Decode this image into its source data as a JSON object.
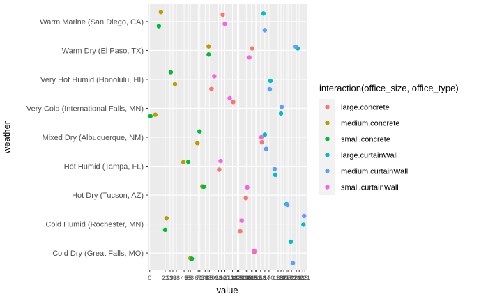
{
  "chart_data": {
    "type": "scatter",
    "xlabel": "value",
    "ylabel": "weather",
    "legend_title": "interaction(office_size, office_type)",
    "legend_position": "right",
    "grid": true,
    "colors": {
      "panel_bg": "#ebebeb",
      "grid": "#ffffff"
    },
    "categories": [
      "Cold Dry (Great Falls, MO)",
      "Cold Humid (Rochester, MN)",
      "Hot Dry (Tucson, AZ)",
      "Hot Humid (Tampa, FL)",
      "Mixed Dry (Albuquerque, NM)",
      "Very Cold (International Falls, MN)",
      "Very Hot Humid (Honolulu, HI)",
      "Warm Dry (El Paso, TX)",
      "Warm Marine (San Diego, CA)"
    ],
    "x_tick_labels": [
      "0",
      "22",
      "29",
      "33",
      "38",
      "49",
      "55",
      "58",
      "69",
      "71",
      "73",
      "79",
      "83",
      "85",
      "93",
      "98",
      "102",
      "107",
      "113",
      "118",
      "123",
      "125",
      "127",
      "136",
      "138",
      "139",
      "145",
      "146",
      "151",
      "152",
      "158",
      "164",
      "170",
      "183",
      "187",
      "191",
      "195",
      "197",
      "202",
      "209",
      "213",
      "218",
      "221"
    ],
    "xlim": [
      0,
      221
    ],
    "series": [
      {
        "name": "large.concrete",
        "color": "#f8766d",
        "points": [
          {
            "y": "Cold Dry (Great Falls, MO)",
            "x": 149,
            "j": 0.03
          },
          {
            "y": "Cold Humid (Rochester, MN)",
            "x": 129,
            "j": -0.25
          },
          {
            "y": "Hot Dry (Tucson, AZ)",
            "x": 137,
            "j": -0.1
          },
          {
            "y": "Hot Humid (Tampa, FL)",
            "x": 99,
            "j": -0.12
          },
          {
            "y": "Mixed Dry (Albuquerque, NM)",
            "x": 160,
            "j": -0.17
          },
          {
            "y": "Very Cold (International Falls, MN)",
            "x": 119,
            "j": 0.22
          },
          {
            "y": "Very Hot Humid (Honolulu, HI)",
            "x": 88,
            "j": -0.33
          },
          {
            "y": "Warm Dry (El Paso, TX)",
            "x": 146,
            "j": 0.07
          },
          {
            "y": "Warm Marine (San Diego, CA)",
            "x": 104,
            "j": 0.24
          }
        ]
      },
      {
        "name": "medium.concrete",
        "color": "#b79f00",
        "points": [
          {
            "y": "Cold Dry (Great Falls, MO)",
            "x": 58,
            "j": -0.18
          },
          {
            "y": "Cold Humid (Rochester, MN)",
            "x": 24,
            "j": 0.2
          },
          {
            "y": "Hot Dry (Tucson, AZ)",
            "x": 75,
            "j": 0.3
          },
          {
            "y": "Hot Humid (Tampa, FL)",
            "x": 48,
            "j": 0.14
          },
          {
            "y": "Mixed Dry (Albuquerque, NM)",
            "x": 68,
            "j": -0.2
          },
          {
            "y": "Very Cold (International Falls, MN)",
            "x": 8,
            "j": -0.22
          },
          {
            "y": "Very Hot Humid (Honolulu, HI)",
            "x": 36,
            "j": -0.16
          },
          {
            "y": "Warm Dry (El Paso, TX)",
            "x": 84,
            "j": 0.14
          },
          {
            "y": "Warm Marine (San Diego, CA)",
            "x": 16,
            "j": 0.33
          }
        ]
      },
      {
        "name": "small.concrete",
        "color": "#00ba38",
        "points": [
          {
            "y": "Cold Dry (Great Falls, MO)",
            "x": 60,
            "j": -0.2
          },
          {
            "y": "Cold Humid (Rochester, MN)",
            "x": 22,
            "j": -0.2
          },
          {
            "y": "Hot Dry (Tucson, AZ)",
            "x": 77,
            "j": 0.29
          },
          {
            "y": "Hot Humid (Tampa, FL)",
            "x": 55,
            "j": 0.15
          },
          {
            "y": "Mixed Dry (Albuquerque, NM)",
            "x": 71,
            "j": 0.2
          },
          {
            "y": "Very Cold (International Falls, MN)",
            "x": 1,
            "j": -0.27
          },
          {
            "y": "Very Hot Humid (Honolulu, HI)",
            "x": 30,
            "j": 0.25
          },
          {
            "y": "Warm Dry (El Paso, TX)",
            "x": 84,
            "j": -0.14
          },
          {
            "y": "Warm Marine (San Diego, CA)",
            "x": 13,
            "j": -0.16
          }
        ]
      },
      {
        "name": "large.curtainWall",
        "color": "#00bfc4",
        "points": [
          {
            "y": "Cold Dry (Great Falls, MO)",
            "x": 201,
            "j": 0.39
          },
          {
            "y": "Cold Humid (Rochester, MN)",
            "x": 219,
            "j": -0.02
          },
          {
            "y": "Hot Dry (Tucson, AZ)",
            "x": 195,
            "j": -0.31
          },
          {
            "y": "Hot Humid (Tampa, FL)",
            "x": 179,
            "j": -0.3
          },
          {
            "y": "Mixed Dry (Albuquerque, NM)",
            "x": 164,
            "j": 0.09
          },
          {
            "y": "Very Cold (International Falls, MN)",
            "x": 187,
            "j": -0.18
          },
          {
            "y": "Very Hot Humid (Honolulu, HI)",
            "x": 172,
            "j": -0.05
          },
          {
            "y": "Warm Dry (El Paso, TX)",
            "x": 211,
            "j": 0.07
          },
          {
            "y": "Warm Marine (San Diego, CA)",
            "x": 162,
            "j": 0.28
          }
        ]
      },
      {
        "name": "medium.curtainWall",
        "color": "#619cff",
        "points": [
          {
            "y": "Cold Dry (Great Falls, MO)",
            "x": 204,
            "j": -0.35
          },
          {
            "y": "Cold Humid (Rochester, MN)",
            "x": 220,
            "j": 0.28
          },
          {
            "y": "Hot Dry (Tucson, AZ)",
            "x": 196,
            "j": -0.34
          },
          {
            "y": "Hot Humid (Tampa, FL)",
            "x": 178,
            "j": -0.1
          },
          {
            "y": "Mixed Dry (Albuquerque, NM)",
            "x": 166,
            "j": -0.4
          },
          {
            "y": "Very Cold (International Falls, MN)",
            "x": 188,
            "j": 0.05
          },
          {
            "y": "Very Hot Humid (Honolulu, HI)",
            "x": 171,
            "j": -0.34
          },
          {
            "y": "Warm Dry (El Paso, TX)",
            "x": 208,
            "j": 0.13
          },
          {
            "y": "Warm Marine (San Diego, CA)",
            "x": 164,
            "j": -0.3
          }
        ]
      },
      {
        "name": "small.curtainWall",
        "color": "#f564e3",
        "points": [
          {
            "y": "Cold Dry (Great Falls, MO)",
            "x": 149,
            "j": 0.08
          },
          {
            "y": "Cold Humid (Rochester, MN)",
            "x": 131,
            "j": 0.12
          },
          {
            "y": "Hot Dry (Tucson, AZ)",
            "x": 139,
            "j": 0.27
          },
          {
            "y": "Hot Humid (Tampa, FL)",
            "x": 101,
            "j": 0.18
          },
          {
            "y": "Mixed Dry (Albuquerque, NM)",
            "x": 159,
            "j": 0.0
          },
          {
            "y": "Very Cold (International Falls, MN)",
            "x": 114,
            "j": 0.35
          },
          {
            "y": "Very Hot Humid (Honolulu, HI)",
            "x": 92,
            "j": 0.11
          },
          {
            "y": "Warm Dry (El Paso, TX)",
            "x": 142,
            "j": -0.24
          },
          {
            "y": "Warm Marine (San Diego, CA)",
            "x": 107,
            "j": -0.08
          }
        ]
      }
    ]
  }
}
